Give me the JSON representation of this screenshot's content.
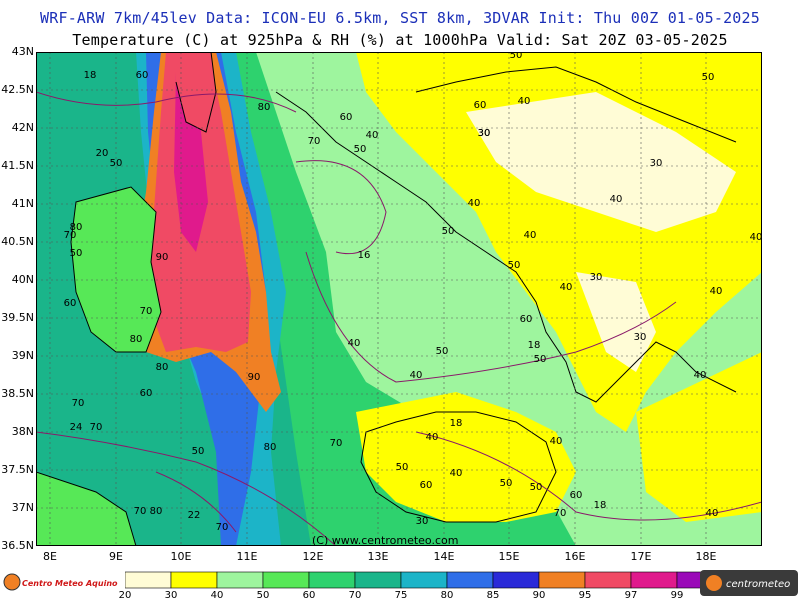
{
  "header": {
    "line1": "WRF-ARW 7km/45lev  Data: ICON-EU 6.5km, SST 8km, 3DVAR  Init: Thu 00Z 01-05-2025",
    "line2": "Temperature (C) at 925hPa & RH (%) at 1000hPa  Valid: Sat 20Z 03-05-2025"
  },
  "axes": {
    "lat_labels": [
      "43N",
      "42.5N",
      "42N",
      "41.5N",
      "41N",
      "40.5N",
      "40N",
      "39.5N",
      "39N",
      "38.5N",
      "38N",
      "37.5N",
      "37N",
      "36.5N"
    ],
    "lon_labels": [
      "8E",
      "9E",
      "10E",
      "11E",
      "12E",
      "13E",
      "14E",
      "15E",
      "16E",
      "17E",
      "18E"
    ]
  },
  "legend": {
    "ticks": [
      "20",
      "30",
      "40",
      "50",
      "60",
      "70",
      "75",
      "80",
      "85",
      "90",
      "95",
      "97",
      "99"
    ],
    "colors": [
      "#fffcd6",
      "#ffff00",
      "#9ef59e",
      "#57e857",
      "#2ed26e",
      "#1ab58a",
      "#1cb4c8",
      "#2f6ee8",
      "#2a2ad8",
      "#f08024",
      "#f04a64",
      "#e01a8c",
      "#9a0ab8"
    ]
  },
  "field_labels": [
    {
      "text": "18"
    },
    {
      "text": "60"
    },
    {
      "text": "80"
    },
    {
      "text": "60"
    },
    {
      "text": "70"
    },
    {
      "text": "50"
    },
    {
      "text": "40"
    },
    {
      "text": "30"
    },
    {
      "text": "50"
    },
    {
      "text": "60"
    },
    {
      "text": "40"
    },
    {
      "text": "50"
    },
    {
      "text": "20"
    },
    {
      "text": "50"
    },
    {
      "text": "30"
    },
    {
      "text": "30"
    },
    {
      "text": "40"
    },
    {
      "text": "40"
    },
    {
      "text": "80"
    },
    {
      "text": "70"
    },
    {
      "text": "50"
    },
    {
      "text": "16"
    },
    {
      "text": "50"
    },
    {
      "text": "40"
    },
    {
      "text": "50"
    },
    {
      "text": "90"
    },
    {
      "text": "60"
    },
    {
      "text": "40"
    },
    {
      "text": "30"
    },
    {
      "text": "40"
    },
    {
      "text": "70"
    },
    {
      "text": "60"
    },
    {
      "text": "80"
    },
    {
      "text": "30"
    },
    {
      "text": "40"
    },
    {
      "text": "50"
    },
    {
      "text": "18"
    },
    {
      "text": "50"
    },
    {
      "text": "80"
    },
    {
      "text": "90"
    },
    {
      "text": "40"
    },
    {
      "text": "40"
    },
    {
      "text": "70"
    },
    {
      "text": "60"
    },
    {
      "text": "40"
    },
    {
      "text": "24"
    },
    {
      "text": "70"
    },
    {
      "text": "70"
    },
    {
      "text": "18"
    },
    {
      "text": "40"
    },
    {
      "text": "40"
    },
    {
      "text": "50"
    },
    {
      "text": "80"
    },
    {
      "text": "50"
    },
    {
      "text": "60"
    },
    {
      "text": "50"
    },
    {
      "text": "50"
    },
    {
      "text": "60"
    },
    {
      "text": "18"
    },
    {
      "text": "40"
    },
    {
      "text": "70"
    },
    {
      "text": "80"
    },
    {
      "text": "22"
    },
    {
      "text": "70"
    },
    {
      "text": "30"
    },
    {
      "text": "70"
    },
    {
      "text": "40"
    }
  ],
  "copyright": "(C) www.centrometeo.com",
  "logos": {
    "left": "Centro Meteo Aquino",
    "right": "centrometeo"
  }
}
